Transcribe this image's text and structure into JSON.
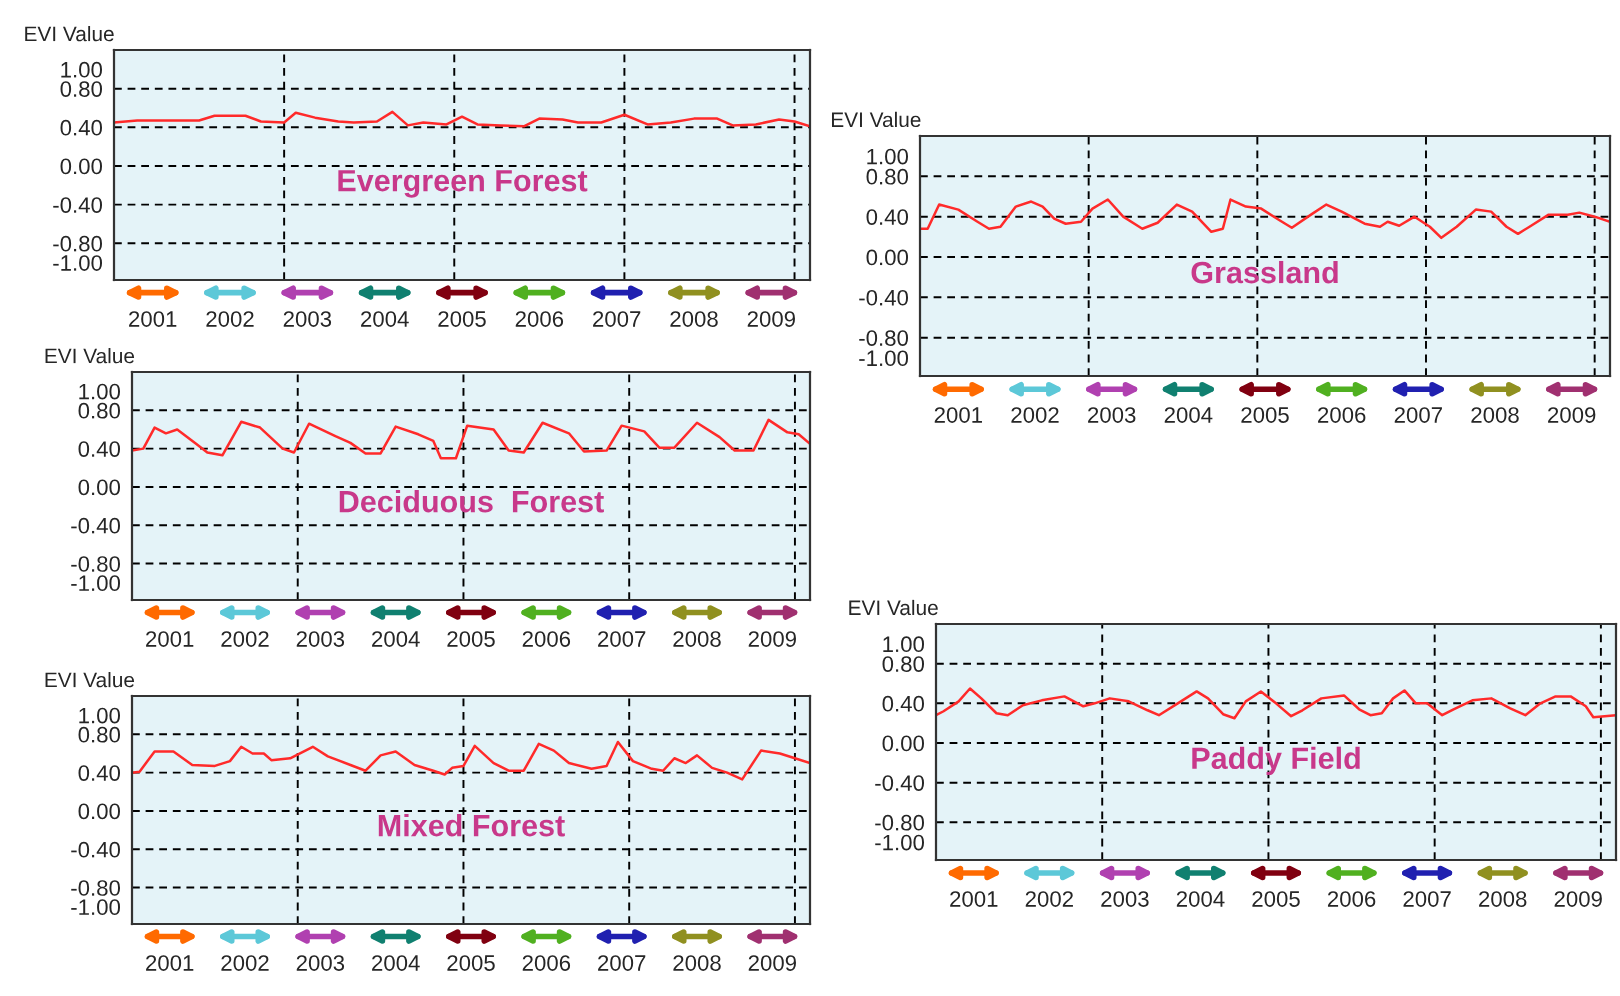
{
  "chart_data": [
    {
      "type": "line",
      "title": "Evergreen Forest",
      "ylabel": "EVI Value",
      "xlim": [
        2001,
        2010
      ],
      "ylim": [
        -1.18,
        1.2
      ],
      "xticks": [
        {
          "value": 2001.5,
          "label": "2001"
        },
        {
          "value": 2002.5,
          "label": "2002"
        },
        {
          "value": 2003.5,
          "label": "2003"
        },
        {
          "value": 2004.5,
          "label": "2004"
        },
        {
          "value": 2005.5,
          "label": "2005"
        },
        {
          "value": 2006.5,
          "label": "2006"
        },
        {
          "value": 2007.5,
          "label": "2007"
        },
        {
          "value": 2008.5,
          "label": "2008"
        },
        {
          "value": 2009.5,
          "label": "2009"
        }
      ],
      "yticks": [
        {
          "value": 1.0,
          "label": "1.00"
        },
        {
          "value": 0.8,
          "label": "0.80"
        },
        {
          "value": 0.4,
          "label": "0.40"
        },
        {
          "value": 0.0,
          "label": "0.00"
        },
        {
          "value": -0.4,
          "label": "-0.40"
        },
        {
          "value": -0.8,
          "label": "-0.80"
        },
        {
          "value": -1.0,
          "label": "-1.00"
        }
      ],
      "ref_lines": [
        {
          "axis": "y",
          "value": 0.8,
          "line_style": "dashed",
          "color": "#000000"
        },
        {
          "axis": "y",
          "value": 0.4,
          "line_style": "dashed",
          "color": "#000000"
        },
        {
          "axis": "y",
          "value": 0.0,
          "line_style": "dashed",
          "color": "#000000"
        },
        {
          "axis": "y",
          "value": -0.4,
          "line_style": "dashed",
          "color": "#000000"
        },
        {
          "axis": "y",
          "value": -0.8,
          "line_style": "dashed",
          "color": "#000000"
        },
        {
          "axis": "x",
          "value": 2003.2,
          "line_style": "dashed",
          "color": "#000000"
        },
        {
          "axis": "x",
          "value": 2005.4,
          "line_style": "dashed",
          "color": "#000000"
        },
        {
          "axis": "x",
          "value": 2007.6,
          "line_style": "dashed",
          "color": "#000000"
        },
        {
          "axis": "x",
          "value": 2009.8,
          "line_style": "dashed",
          "color": "#000000"
        }
      ],
      "series": [
        {
          "color": "#ff2a2a",
          "x": [
            2001.0,
            2001.3,
            2001.8,
            2002.1,
            2002.3,
            2002.7,
            2002.9,
            2003.2,
            2003.35,
            2003.6,
            2003.9,
            2004.1,
            2004.4,
            2004.6,
            2004.8,
            2005.0,
            2005.3,
            2005.5,
            2005.7,
            2006.0,
            2006.3,
            2006.5,
            2006.8,
            2007.0,
            2007.3,
            2007.6,
            2007.9,
            2008.2,
            2008.5,
            2008.8,
            2009.0,
            2009.3,
            2009.6,
            2009.8,
            2010.0
          ],
          "values": [
            0.45,
            0.47,
            0.47,
            0.47,
            0.52,
            0.52,
            0.46,
            0.45,
            0.55,
            0.5,
            0.46,
            0.45,
            0.46,
            0.56,
            0.42,
            0.45,
            0.43,
            0.51,
            0.43,
            0.42,
            0.41,
            0.49,
            0.48,
            0.45,
            0.45,
            0.53,
            0.43,
            0.45,
            0.49,
            0.49,
            0.42,
            0.43,
            0.48,
            0.46,
            0.41
          ]
        }
      ]
    },
    {
      "type": "line",
      "title": "Deciduous  Forest",
      "ylabel": "EVI Value",
      "xlim": [
        2001,
        2010
      ],
      "ylim": [
        -1.18,
        1.2
      ],
      "xticks": [
        {
          "value": 2001.5,
          "label": "2001"
        },
        {
          "value": 2002.5,
          "label": "2002"
        },
        {
          "value": 2003.5,
          "label": "2003"
        },
        {
          "value": 2004.5,
          "label": "2004"
        },
        {
          "value": 2005.5,
          "label": "2005"
        },
        {
          "value": 2006.5,
          "label": "2006"
        },
        {
          "value": 2007.5,
          "label": "2007"
        },
        {
          "value": 2008.5,
          "label": "2008"
        },
        {
          "value": 2009.5,
          "label": "2009"
        }
      ],
      "yticks": [
        {
          "value": 1.0,
          "label": "1.00"
        },
        {
          "value": 0.8,
          "label": "0.80"
        },
        {
          "value": 0.4,
          "label": "0.40"
        },
        {
          "value": 0.0,
          "label": "0.00"
        },
        {
          "value": -0.4,
          "label": "-0.40"
        },
        {
          "value": -0.8,
          "label": "-0.80"
        },
        {
          "value": -1.0,
          "label": "-1.00"
        }
      ],
      "ref_lines": [
        {
          "axis": "y",
          "value": 0.8,
          "line_style": "dashed",
          "color": "#000000"
        },
        {
          "axis": "y",
          "value": 0.4,
          "line_style": "dashed",
          "color": "#000000"
        },
        {
          "axis": "y",
          "value": 0.0,
          "line_style": "dashed",
          "color": "#000000"
        },
        {
          "axis": "y",
          "value": -0.4,
          "line_style": "dashed",
          "color": "#000000"
        },
        {
          "axis": "y",
          "value": -0.8,
          "line_style": "dashed",
          "color": "#000000"
        },
        {
          "axis": "x",
          "value": 2003.2,
          "line_style": "dashed",
          "color": "#000000"
        },
        {
          "axis": "x",
          "value": 2005.4,
          "line_style": "dashed",
          "color": "#000000"
        },
        {
          "axis": "x",
          "value": 2007.6,
          "line_style": "dashed",
          "color": "#000000"
        },
        {
          "axis": "x",
          "value": 2009.8,
          "line_style": "dashed",
          "color": "#000000"
        }
      ],
      "series": [
        {
          "color": "#ff2a2a",
          "x": [
            2001.0,
            2001.15,
            2001.3,
            2001.45,
            2001.6,
            2001.85,
            2002.0,
            2002.2,
            2002.45,
            2002.7,
            2003.0,
            2003.15,
            2003.35,
            2003.7,
            2003.9,
            2004.1,
            2004.3,
            2004.5,
            2004.8,
            2005.0,
            2005.1,
            2005.3,
            2005.45,
            2005.8,
            2006.0,
            2006.2,
            2006.45,
            2006.8,
            2007.0,
            2007.3,
            2007.5,
            2007.8,
            2008.0,
            2008.2,
            2008.5,
            2008.8,
            2009.0,
            2009.25,
            2009.45,
            2009.7,
            2009.85,
            2010.0
          ],
          "values": [
            0.38,
            0.4,
            0.62,
            0.56,
            0.6,
            0.45,
            0.36,
            0.33,
            0.68,
            0.62,
            0.4,
            0.36,
            0.66,
            0.53,
            0.46,
            0.35,
            0.35,
            0.63,
            0.55,
            0.48,
            0.3,
            0.3,
            0.64,
            0.6,
            0.38,
            0.36,
            0.67,
            0.56,
            0.37,
            0.38,
            0.64,
            0.58,
            0.41,
            0.41,
            0.67,
            0.52,
            0.38,
            0.38,
            0.7,
            0.57,
            0.55,
            0.45
          ]
        }
      ]
    },
    {
      "type": "line",
      "title": "Mixed Forest",
      "ylabel": "EVI Value",
      "xlim": [
        2001,
        2010
      ],
      "ylim": [
        -1.18,
        1.2
      ],
      "xticks": [
        {
          "value": 2001.5,
          "label": "2001"
        },
        {
          "value": 2002.5,
          "label": "2002"
        },
        {
          "value": 2003.5,
          "label": "2003"
        },
        {
          "value": 2004.5,
          "label": "2004"
        },
        {
          "value": 2005.5,
          "label": "2005"
        },
        {
          "value": 2006.5,
          "label": "2006"
        },
        {
          "value": 2007.5,
          "label": "2007"
        },
        {
          "value": 2008.5,
          "label": "2008"
        },
        {
          "value": 2009.5,
          "label": "2009"
        }
      ],
      "yticks": [
        {
          "value": 1.0,
          "label": "1.00"
        },
        {
          "value": 0.8,
          "label": "0.80"
        },
        {
          "value": 0.4,
          "label": "0.40"
        },
        {
          "value": 0.0,
          "label": "0.00"
        },
        {
          "value": -0.4,
          "label": "-0.40"
        },
        {
          "value": -0.8,
          "label": "-0.80"
        },
        {
          "value": -1.0,
          "label": "-1.00"
        }
      ],
      "ref_lines": [
        {
          "axis": "y",
          "value": 0.8,
          "line_style": "dashed",
          "color": "#000000"
        },
        {
          "axis": "y",
          "value": 0.4,
          "line_style": "dashed",
          "color": "#000000"
        },
        {
          "axis": "y",
          "value": 0.0,
          "line_style": "dashed",
          "color": "#000000"
        },
        {
          "axis": "y",
          "value": -0.4,
          "line_style": "dashed",
          "color": "#000000"
        },
        {
          "axis": "y",
          "value": -0.8,
          "line_style": "dashed",
          "color": "#000000"
        },
        {
          "axis": "x",
          "value": 2003.2,
          "line_style": "dashed",
          "color": "#000000"
        },
        {
          "axis": "x",
          "value": 2005.4,
          "line_style": "dashed",
          "color": "#000000"
        },
        {
          "axis": "x",
          "value": 2007.6,
          "line_style": "dashed",
          "color": "#000000"
        },
        {
          "axis": "x",
          "value": 2009.8,
          "line_style": "dashed",
          "color": "#000000"
        }
      ],
      "series": [
        {
          "color": "#ff2a2a",
          "x": [
            2001.0,
            2001.1,
            2001.3,
            2001.55,
            2001.8,
            2002.1,
            2002.3,
            2002.45,
            2002.6,
            2002.75,
            2002.85,
            2003.1,
            2003.4,
            2003.6,
            2003.9,
            2004.1,
            2004.3,
            2004.5,
            2004.75,
            2005.0,
            2005.15,
            2005.25,
            2005.4,
            2005.55,
            2005.8,
            2006.0,
            2006.2,
            2006.4,
            2006.6,
            2006.8,
            2007.1,
            2007.3,
            2007.45,
            2007.65,
            2007.9,
            2008.05,
            2008.2,
            2008.35,
            2008.5,
            2008.7,
            2008.9,
            2009.1,
            2009.35,
            2009.6,
            2009.8,
            2010.0
          ],
          "values": [
            0.4,
            0.41,
            0.62,
            0.62,
            0.48,
            0.47,
            0.52,
            0.67,
            0.6,
            0.6,
            0.53,
            0.55,
            0.67,
            0.57,
            0.48,
            0.42,
            0.58,
            0.62,
            0.48,
            0.42,
            0.38,
            0.45,
            0.47,
            0.68,
            0.5,
            0.42,
            0.42,
            0.7,
            0.63,
            0.5,
            0.44,
            0.47,
            0.72,
            0.52,
            0.44,
            0.42,
            0.55,
            0.5,
            0.58,
            0.45,
            0.4,
            0.33,
            0.63,
            0.6,
            0.55,
            0.5
          ]
        }
      ]
    },
    {
      "type": "line",
      "title": "Grassland",
      "ylabel": "EVI Value",
      "xlim": [
        2001,
        2010
      ],
      "ylim": [
        -1.18,
        1.2
      ],
      "xticks": [
        {
          "value": 2001.5,
          "label": "2001"
        },
        {
          "value": 2002.5,
          "label": "2002"
        },
        {
          "value": 2003.5,
          "label": "2003"
        },
        {
          "value": 2004.5,
          "label": "2004"
        },
        {
          "value": 2005.5,
          "label": "2005"
        },
        {
          "value": 2006.5,
          "label": "2006"
        },
        {
          "value": 2007.5,
          "label": "2007"
        },
        {
          "value": 2008.5,
          "label": "2008"
        },
        {
          "value": 2009.5,
          "label": "2009"
        }
      ],
      "yticks": [
        {
          "value": 1.0,
          "label": "1.00"
        },
        {
          "value": 0.8,
          "label": "0.80"
        },
        {
          "value": 0.4,
          "label": "0.40"
        },
        {
          "value": 0.0,
          "label": "0.00"
        },
        {
          "value": -0.4,
          "label": "-0.40"
        },
        {
          "value": -0.8,
          "label": "-0.80"
        },
        {
          "value": -1.0,
          "label": "-1.00"
        }
      ],
      "ref_lines": [
        {
          "axis": "y",
          "value": 0.8,
          "line_style": "dashed",
          "color": "#000000"
        },
        {
          "axis": "y",
          "value": 0.4,
          "line_style": "dashed",
          "color": "#000000"
        },
        {
          "axis": "y",
          "value": 0.0,
          "line_style": "dashed",
          "color": "#000000"
        },
        {
          "axis": "y",
          "value": -0.4,
          "line_style": "dashed",
          "color": "#000000"
        },
        {
          "axis": "y",
          "value": -0.8,
          "line_style": "dashed",
          "color": "#000000"
        },
        {
          "axis": "x",
          "value": 2003.2,
          "line_style": "dashed",
          "color": "#000000"
        },
        {
          "axis": "x",
          "value": 2005.4,
          "line_style": "dashed",
          "color": "#000000"
        },
        {
          "axis": "x",
          "value": 2007.6,
          "line_style": "dashed",
          "color": "#000000"
        },
        {
          "axis": "x",
          "value": 2009.8,
          "line_style": "dashed",
          "color": "#000000"
        }
      ],
      "series": [
        {
          "color": "#ff2a2a",
          "x": [
            2001.0,
            2001.1,
            2001.25,
            2001.5,
            2001.75,
            2001.9,
            2002.05,
            2002.25,
            2002.45,
            2002.6,
            2002.75,
            2002.9,
            2003.1,
            2003.25,
            2003.45,
            2003.65,
            2003.9,
            2004.1,
            2004.35,
            2004.55,
            2004.8,
            2004.95,
            2005.05,
            2005.25,
            2005.45,
            2005.7,
            2005.85,
            2006.1,
            2006.3,
            2006.5,
            2006.8,
            2007.0,
            2007.1,
            2007.25,
            2007.45,
            2007.65,
            2007.8,
            2008.0,
            2008.25,
            2008.45,
            2008.65,
            2008.8,
            2008.95,
            2009.2,
            2009.45,
            2009.6,
            2009.8,
            2010.0
          ],
          "values": [
            0.28,
            0.28,
            0.52,
            0.47,
            0.35,
            0.28,
            0.3,
            0.5,
            0.55,
            0.5,
            0.38,
            0.33,
            0.35,
            0.48,
            0.57,
            0.4,
            0.28,
            0.34,
            0.52,
            0.45,
            0.25,
            0.28,
            0.57,
            0.5,
            0.48,
            0.36,
            0.29,
            0.42,
            0.52,
            0.45,
            0.33,
            0.3,
            0.35,
            0.31,
            0.4,
            0.3,
            0.19,
            0.3,
            0.47,
            0.45,
            0.3,
            0.23,
            0.3,
            0.42,
            0.42,
            0.44,
            0.4,
            0.35
          ]
        }
      ]
    },
    {
      "type": "line",
      "title": "Paddy Field",
      "ylabel": "EVI Value",
      "xlim": [
        2001,
        2010
      ],
      "ylim": [
        -1.18,
        1.2
      ],
      "xticks": [
        {
          "value": 2001.5,
          "label": "2001"
        },
        {
          "value": 2002.5,
          "label": "2002"
        },
        {
          "value": 2003.5,
          "label": "2003"
        },
        {
          "value": 2004.5,
          "label": "2004"
        },
        {
          "value": 2005.5,
          "label": "2005"
        },
        {
          "value": 2006.5,
          "label": "2006"
        },
        {
          "value": 2007.5,
          "label": "2007"
        },
        {
          "value": 2008.5,
          "label": "2008"
        },
        {
          "value": 2009.5,
          "label": "2009"
        }
      ],
      "yticks": [
        {
          "value": 1.0,
          "label": "1.00"
        },
        {
          "value": 0.8,
          "label": "0.80"
        },
        {
          "value": 0.4,
          "label": "0.40"
        },
        {
          "value": 0.0,
          "label": "0.00"
        },
        {
          "value": -0.4,
          "label": "-0.40"
        },
        {
          "value": -0.8,
          "label": "-0.80"
        },
        {
          "value": -1.0,
          "label": "-1.00"
        }
      ],
      "ref_lines": [
        {
          "axis": "y",
          "value": 0.8,
          "line_style": "dashed",
          "color": "#000000"
        },
        {
          "axis": "y",
          "value": 0.4,
          "line_style": "dashed",
          "color": "#000000"
        },
        {
          "axis": "y",
          "value": 0.0,
          "line_style": "dashed",
          "color": "#000000"
        },
        {
          "axis": "y",
          "value": -0.4,
          "line_style": "dashed",
          "color": "#000000"
        },
        {
          "axis": "y",
          "value": -0.8,
          "line_style": "dashed",
          "color": "#000000"
        },
        {
          "axis": "x",
          "value": 2003.2,
          "line_style": "dashed",
          "color": "#000000"
        },
        {
          "axis": "x",
          "value": 2005.4,
          "line_style": "dashed",
          "color": "#000000"
        },
        {
          "axis": "x",
          "value": 2007.6,
          "line_style": "dashed",
          "color": "#000000"
        },
        {
          "axis": "x",
          "value": 2009.8,
          "line_style": "dashed",
          "color": "#000000"
        }
      ],
      "series": [
        {
          "color": "#ff2a2a",
          "x": [
            2001.0,
            2001.1,
            2001.3,
            2001.45,
            2001.6,
            2001.8,
            2001.95,
            2002.15,
            2002.4,
            2002.7,
            2002.95,
            2003.1,
            2003.3,
            2003.55,
            2003.8,
            2003.95,
            2004.2,
            2004.45,
            2004.6,
            2004.8,
            2004.95,
            2005.1,
            2005.3,
            2005.5,
            2005.7,
            2005.85,
            2006.1,
            2006.4,
            2006.6,
            2006.75,
            2006.9,
            2007.05,
            2007.2,
            2007.35,
            2007.5,
            2007.7,
            2007.85,
            2008.1,
            2008.35,
            2008.6,
            2008.8,
            2009.0,
            2009.2,
            2009.4,
            2009.6,
            2009.7,
            2010.0
          ],
          "values": [
            0.28,
            0.32,
            0.42,
            0.55,
            0.45,
            0.3,
            0.28,
            0.38,
            0.43,
            0.47,
            0.37,
            0.4,
            0.45,
            0.42,
            0.33,
            0.28,
            0.4,
            0.52,
            0.45,
            0.29,
            0.25,
            0.42,
            0.52,
            0.4,
            0.27,
            0.33,
            0.45,
            0.48,
            0.34,
            0.28,
            0.3,
            0.45,
            0.53,
            0.4,
            0.4,
            0.28,
            0.34,
            0.43,
            0.45,
            0.35,
            0.28,
            0.4,
            0.47,
            0.47,
            0.37,
            0.26,
            0.28
          ]
        }
      ]
    }
  ]
}
